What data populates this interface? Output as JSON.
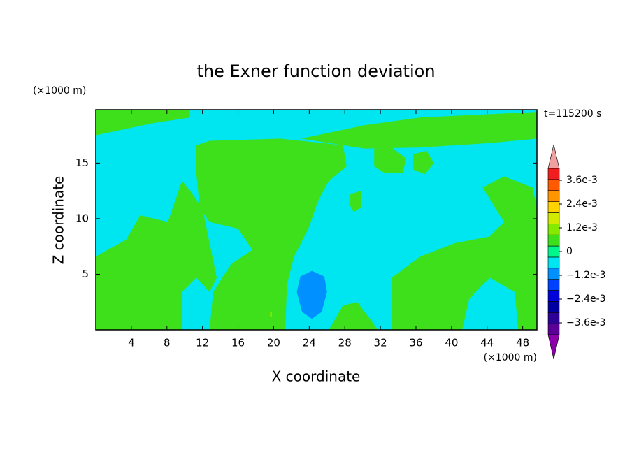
{
  "chart_data": {
    "type": "contour",
    "title": "the Exner function deviation",
    "xlabel": "X coordinate",
    "ylabel": "Z coordinate",
    "x_unit": "(×1000 m)",
    "y_unit": "(×1000 m)",
    "time_label": "t=115200 s",
    "xlim": [
      0,
      49.6
    ],
    "ylim": [
      0,
      19.8
    ],
    "xticks": [
      4,
      8,
      12,
      16,
      20,
      24,
      28,
      32,
      36,
      40,
      44,
      48
    ],
    "yticks": [
      5,
      10,
      15
    ],
    "background_value": -0.0003,
    "colorbar": {
      "lim": [
        -0.0042,
        0.0042
      ],
      "colors": [
        "#5a0096",
        "#2d0096",
        "#0000a0",
        "#0000d8",
        "#0040ff",
        "#0090ff",
        "#00e6f0",
        "#00f78c",
        "#3ee01c",
        "#86ea00",
        "#d2ea00",
        "#ffd200",
        "#ff9600",
        "#ff5a00",
        "#f01e1e"
      ],
      "under_color": "#8c00aa",
      "over_color": "#f0a0a0",
      "ticks": [
        {
          "value": 0.0036,
          "label": "3.6e-3"
        },
        {
          "value": 0.0024,
          "label": "2.4e-3"
        },
        {
          "value": 0.0012,
          "label": "1.2e-3"
        },
        0,
        {
          "value": -0.0012,
          "label": "−1.2e-3"
        },
        {
          "value": -0.0024,
          "label": "−2.4e-3"
        },
        {
          "value": -0.0036,
          "label": "−3.6e-3"
        }
      ]
    },
    "regions": [
      {
        "value": 0.0003,
        "points": [
          [
            0,
            19.8
          ],
          [
            10.5,
            19.8
          ],
          [
            10.6,
            19.1
          ],
          [
            6.5,
            18.6
          ],
          [
            0,
            17.5
          ]
        ]
      },
      {
        "value": 0.0003,
        "points": [
          [
            23.1,
            17.2
          ],
          [
            30.2,
            18.4
          ],
          [
            36.5,
            19.1
          ],
          [
            44.3,
            19.4
          ],
          [
            49.6,
            19.6
          ],
          [
            49.6,
            17.2
          ],
          [
            44.3,
            16.8
          ],
          [
            36.5,
            16.4
          ],
          [
            30.2,
            16.3
          ]
        ]
      },
      {
        "value": 0.0003,
        "points": [
          [
            11.3,
            16.6
          ],
          [
            12.8,
            17.0
          ],
          [
            20.7,
            17.2
          ],
          [
            27.8,
            16.6
          ],
          [
            28.2,
            14.7
          ],
          [
            26.2,
            13.4
          ],
          [
            25.0,
            11.6
          ],
          [
            23.9,
            9.1
          ],
          [
            22.3,
            6.6
          ],
          [
            21.5,
            4.1
          ],
          [
            21.3,
            0
          ],
          [
            12.8,
            0
          ],
          [
            13.2,
            3.4
          ],
          [
            15.2,
            5.9
          ],
          [
            17.6,
            7.2
          ],
          [
            16.0,
            9.1
          ],
          [
            12.8,
            9.7
          ],
          [
            11.7,
            10.9
          ],
          [
            11.3,
            14.1
          ]
        ]
      },
      {
        "value": 0.0003,
        "points": [
          [
            0,
            6.6
          ],
          [
            3.4,
            8.1
          ],
          [
            5.0,
            10.3
          ],
          [
            8.1,
            9.7
          ],
          [
            9.7,
            13.4
          ],
          [
            10.9,
            12.2
          ],
          [
            12.0,
            10.9
          ],
          [
            12.8,
            7.8
          ],
          [
            13.6,
            4.7
          ],
          [
            12.8,
            3.4
          ],
          [
            11.3,
            4.7
          ],
          [
            9.7,
            3.4
          ],
          [
            9.7,
            0
          ],
          [
            0,
            0
          ]
        ]
      },
      {
        "value": 0.0003,
        "points": [
          [
            33.3,
            0
          ],
          [
            33.3,
            4.7
          ],
          [
            36.5,
            6.6
          ],
          [
            40.4,
            7.8
          ],
          [
            44.3,
            8.4
          ],
          [
            45.9,
            9.7
          ],
          [
            43.5,
            12.8
          ],
          [
            45.9,
            13.8
          ],
          [
            49.1,
            12.8
          ],
          [
            49.6,
            10.9
          ],
          [
            49.6,
            0
          ],
          [
            47.5,
            0
          ],
          [
            47.1,
            3.4
          ],
          [
            44.3,
            4.7
          ],
          [
            42.0,
            2.8
          ],
          [
            41.2,
            0
          ]
        ]
      },
      {
        "value": 0.0003,
        "points": [
          [
            26.2,
            0
          ],
          [
            27.8,
            2.2
          ],
          [
            29.4,
            2.5
          ],
          [
            30.9,
            0.9
          ],
          [
            31.7,
            0
          ]
        ]
      },
      {
        "value": 0.0003,
        "points": [
          [
            31.3,
            16.3
          ],
          [
            33.3,
            16.4
          ],
          [
            34.9,
            15.4
          ],
          [
            34.5,
            14.1
          ],
          [
            32.5,
            14.1
          ],
          [
            31.3,
            14.7
          ]
        ]
      },
      {
        "value": 0.0003,
        "points": [
          [
            35.7,
            15.8
          ],
          [
            37.2,
            16.1
          ],
          [
            38.0,
            15.0
          ],
          [
            37.0,
            14.0
          ],
          [
            35.7,
            14.4
          ]
        ]
      },
      {
        "value": 0.0003,
        "points": [
          [
            28.6,
            12.2
          ],
          [
            29.8,
            12.5
          ],
          [
            29.8,
            11.0
          ],
          [
            29.0,
            10.6
          ],
          [
            28.5,
            11.3
          ]
        ]
      },
      {
        "value": -0.0009,
        "points": [
          [
            24.3,
            5.3
          ],
          [
            25.7,
            4.8
          ],
          [
            26.0,
            3.4
          ],
          [
            25.4,
            1.6
          ],
          [
            24.3,
            1.0
          ],
          [
            23.2,
            1.6
          ],
          [
            22.6,
            3.4
          ],
          [
            23.0,
            4.8
          ]
        ]
      },
      {
        "value": 0.0009,
        "points": [
          [
            19.6,
            1.6
          ],
          [
            19.8,
            1.6
          ],
          [
            19.8,
            1.2
          ],
          [
            19.6,
            1.2
          ]
        ]
      }
    ]
  }
}
